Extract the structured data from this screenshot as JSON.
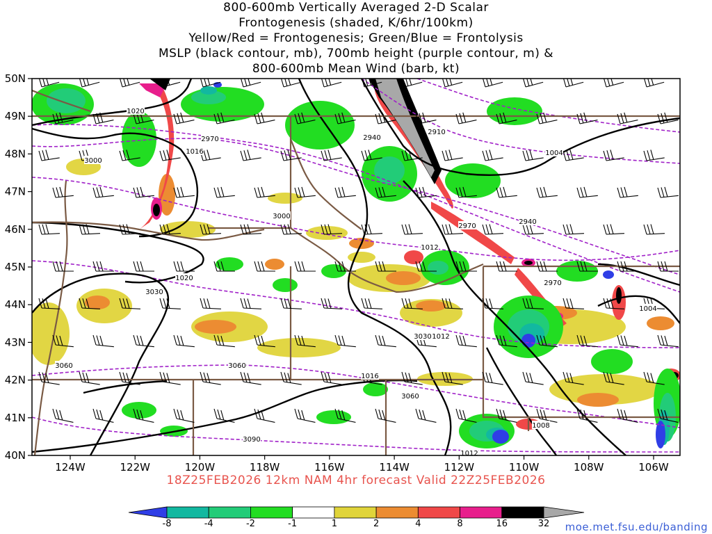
{
  "title": {
    "lines": [
      "800-600mb Vertically Averaged 2-D Scalar",
      "Frontogenesis (shaded, K/6hr/100km)",
      "Yellow/Red = Frontogenesis;  Green/Blue = Frontolysis",
      "MSLP (black contour, mb), 700mb height (purple contour, m) &",
      "800-600mb Mean Wind (barb, kt)"
    ]
  },
  "map": {
    "lat_labels": [
      "50N",
      "49N",
      "48N",
      "47N",
      "46N",
      "45N",
      "44N",
      "43N",
      "42N",
      "41N",
      "40N"
    ],
    "lon_labels": [
      "124W",
      "122W",
      "120W",
      "118W",
      "116W",
      "114W",
      "112W",
      "110W",
      "108W",
      "106W"
    ],
    "pressure_labels": [
      "1020",
      "1016",
      "1012",
      "1008",
      "1004",
      "1020",
      "1016",
      "1012",
      "1004",
      "1012"
    ],
    "height_labels": [
      "2940",
      "2970",
      "3000",
      "3030",
      "3060",
      "3090",
      "2910",
      "2940",
      "2970",
      "3000",
      "2970",
      "3030",
      "3060",
      "3060"
    ]
  },
  "footer": "18Z25FEB2026 12km NAM 4hr forecast Valid 22Z25FEB2026",
  "colorbar": {
    "labels": [
      "-8",
      "-4",
      "-2",
      "-1",
      "1",
      "2",
      "4",
      "8",
      "16",
      "32"
    ],
    "colors": [
      "#2f3ee6",
      "#12b8a0",
      "#22cc78",
      "#22dd22",
      "#ffffff",
      "#e0d43a",
      "#ec8c32",
      "#f04848",
      "#e81e8c",
      "#000000",
      "#a8a8a8"
    ]
  },
  "credit": "moe.met.fsu.edu/banding"
}
